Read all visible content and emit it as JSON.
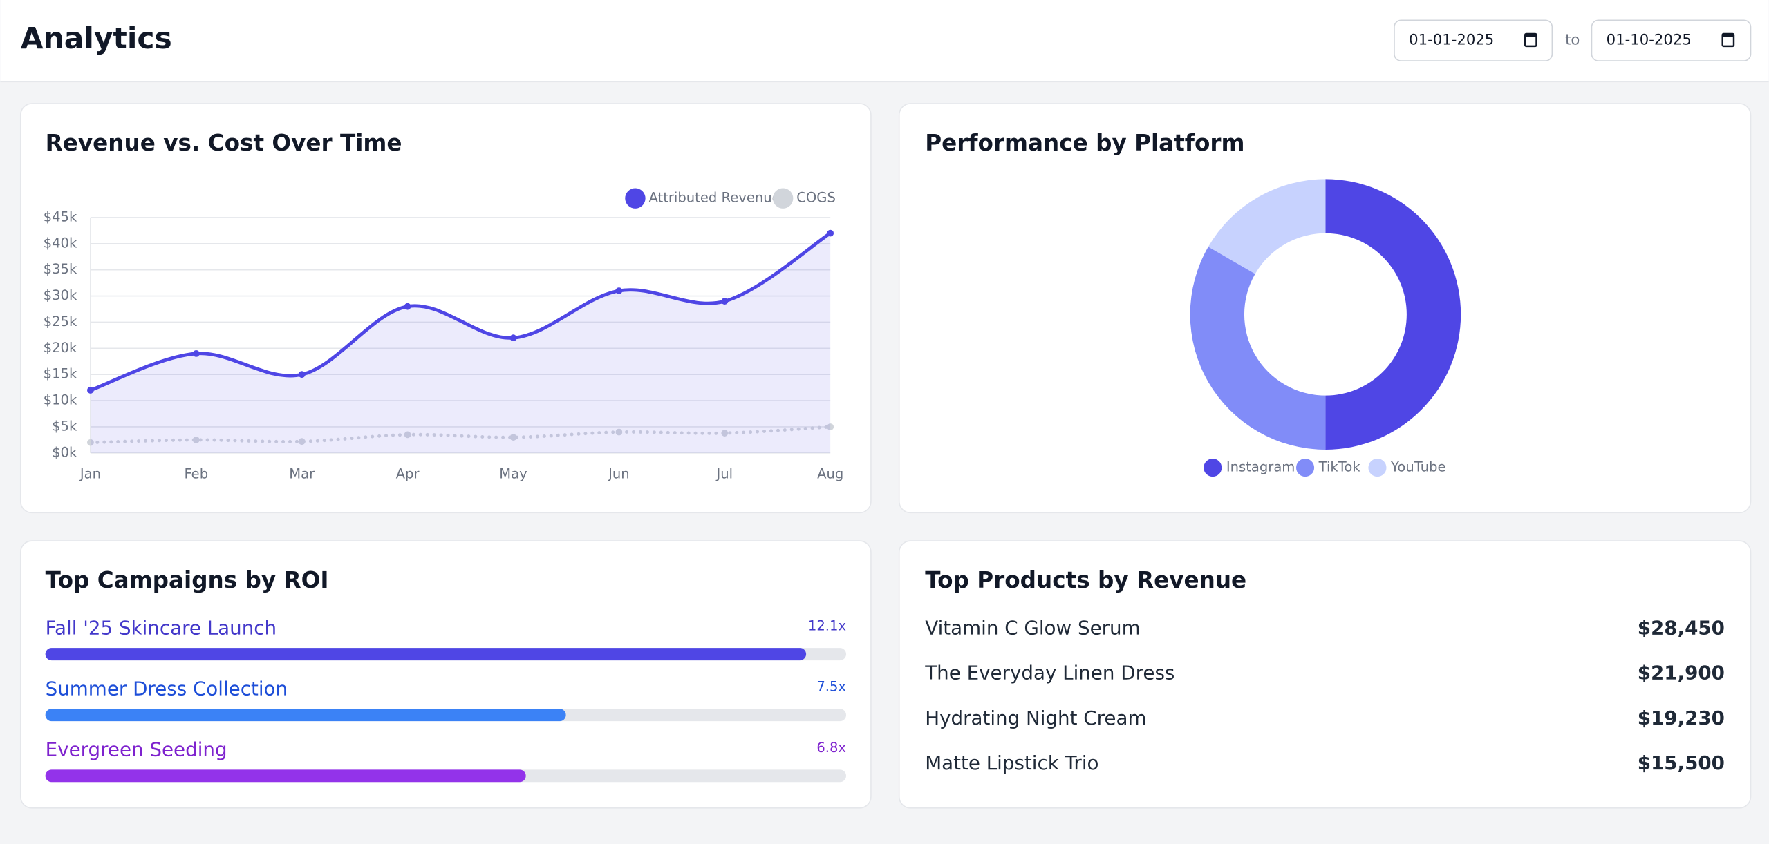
{
  "header": {
    "title": "Analytics",
    "date_from": "01-01-2025",
    "separator": "to",
    "date_to": "01-10-2025"
  },
  "chart_data": [
    {
      "type": "line",
      "title": "Revenue vs. Cost Over Time",
      "categories": [
        "Jan",
        "Feb",
        "Mar",
        "Apr",
        "May",
        "Jun",
        "Jul",
        "Aug"
      ],
      "series": [
        {
          "name": "Attributed Revenue",
          "color": "#4f46e5",
          "values": [
            12000,
            19000,
            15000,
            28000,
            22000,
            31000,
            29000,
            42000
          ]
        },
        {
          "name": "COGS",
          "color": "#d1d5db",
          "values": [
            2000,
            2500,
            2200,
            3500,
            3000,
            4000,
            3800,
            5000
          ]
        }
      ],
      "ylim": [
        0,
        45000
      ],
      "yticks": [
        {
          "value": 0,
          "label": "$0k"
        },
        {
          "value": 5000,
          "label": "$5k"
        },
        {
          "value": 10000,
          "label": "$10k"
        },
        {
          "value": 15000,
          "label": "$15k"
        },
        {
          "value": 20000,
          "label": "$20k"
        },
        {
          "value": 25000,
          "label": "$25k"
        },
        {
          "value": 30000,
          "label": "$30k"
        },
        {
          "value": 35000,
          "label": "$35k"
        },
        {
          "value": 40000,
          "label": "$40k"
        },
        {
          "value": 45000,
          "label": "$45k"
        }
      ],
      "grid": true,
      "legend": "top-right"
    },
    {
      "type": "pie",
      "title": "Performance by Platform",
      "categories": [
        "Instagram",
        "TikTok",
        "YouTube"
      ],
      "values": [
        6000,
        4000,
        2000
      ],
      "colors": [
        "#4f46e5",
        "#818cf8",
        "#c7d2fe"
      ],
      "donut": true,
      "legend": "bottom"
    }
  ],
  "campaigns": {
    "title": "Top Campaigns by ROI",
    "items": [
      {
        "name": "Fall '25 Skincare Launch",
        "roi": "12.1x",
        "progress": 95,
        "color": "#4f46e5",
        "text_color": "#4338ca"
      },
      {
        "name": "Summer Dress Collection",
        "roi": "7.5x",
        "progress": 65,
        "color": "#3b82f6",
        "text_color": "#1d4ed8"
      },
      {
        "name": "Evergreen Seeding",
        "roi": "6.8x",
        "progress": 60,
        "color": "#9333ea",
        "text_color": "#7e22ce"
      }
    ]
  },
  "products": {
    "title": "Top Products by Revenue",
    "rows": [
      [
        "Vitamin C Glow Serum",
        "$28,450"
      ],
      [
        "The Everyday Linen Dress",
        "$21,900"
      ],
      [
        "Hydrating Night Cream",
        "$19,230"
      ],
      [
        "Matte Lipstick Trio",
        "$15,500"
      ]
    ]
  }
}
